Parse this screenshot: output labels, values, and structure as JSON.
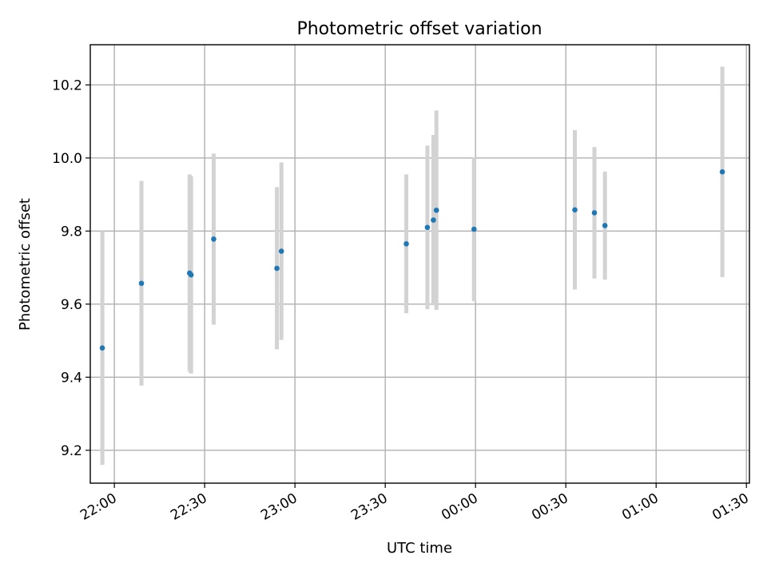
{
  "chart_data": {
    "type": "scatter",
    "title": "Photometric offset variation",
    "xlabel": "UTC time",
    "ylabel": "Photometric offset",
    "x_axis": "time (UTC)",
    "xlim": [
      "21:52:30",
      "01:31:00"
    ],
    "ylim": [
      9.11,
      10.31
    ],
    "grid": true,
    "xticks": [
      "22:00",
      "22:30",
      "23:00",
      "23:30",
      "00:00",
      "00:30",
      "01:00",
      "01:30"
    ],
    "yticks": [
      "9.2",
      "9.4",
      "9.6",
      "9.8",
      "10.0",
      "10.2"
    ],
    "ytick_values": [
      9.2,
      9.4,
      9.6,
      9.8,
      10.0,
      10.2
    ],
    "colors": {
      "points": "#1f77b4",
      "error_bars": "#d3d3d3",
      "grid": "#b0b0b0"
    },
    "points": [
      {
        "x": "21:56",
        "y": 9.48,
        "err": 0.32
      },
      {
        "x": "22:09",
        "y": 9.657,
        "err": 0.28
      },
      {
        "x": "22:25",
        "y": 9.685,
        "err": 0.27
      },
      {
        "x": "22:25.5",
        "y": 9.68,
        "err": 0.27
      },
      {
        "x": "22:33",
        "y": 9.778,
        "err": 0.234
      },
      {
        "x": "22:54",
        "y": 9.698,
        "err": 0.222
      },
      {
        "x": "22:55.5",
        "y": 9.745,
        "err": 0.243
      },
      {
        "x": "23:37",
        "y": 9.765,
        "err": 0.19
      },
      {
        "x": "23:44",
        "y": 9.81,
        "err": 0.224
      },
      {
        "x": "23:46",
        "y": 9.83,
        "err": 0.233
      },
      {
        "x": "23:47",
        "y": 9.857,
        "err": 0.273
      },
      {
        "x": "23:59.5",
        "y": 9.805,
        "err": 0.197
      },
      {
        "x": "00:33",
        "y": 9.858,
        "err": 0.218
      },
      {
        "x": "00:39.5",
        "y": 9.85,
        "err": 0.18
      },
      {
        "x": "00:43",
        "y": 9.815,
        "err": 0.148
      },
      {
        "x": "01:22",
        "y": 9.962,
        "err": 0.288
      }
    ]
  }
}
